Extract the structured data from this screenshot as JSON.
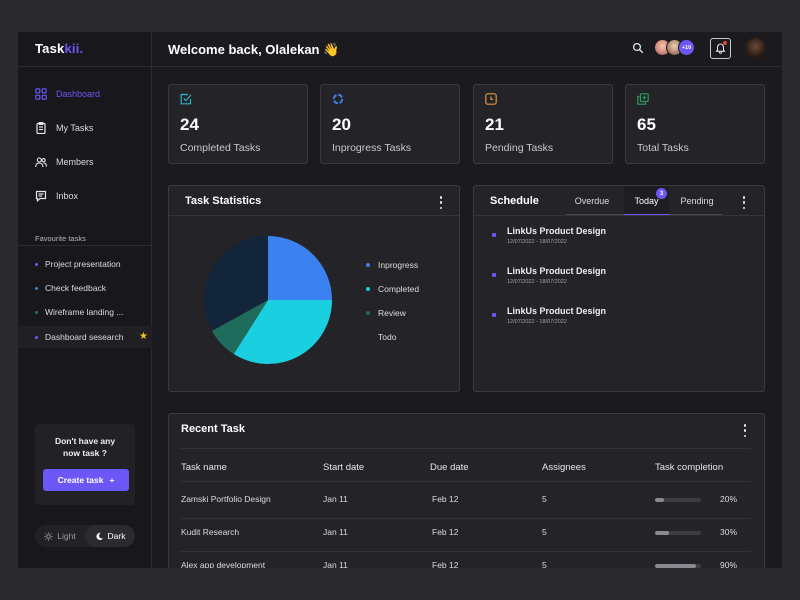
{
  "app": {
    "logo_main": "Task",
    "logo_accent": "kii."
  },
  "sidebar": {
    "nav": [
      {
        "label": "Dashboard",
        "icon": "dashboard-grid-icon",
        "active": true
      },
      {
        "label": "My Tasks",
        "icon": "clipboard-icon",
        "active": false
      },
      {
        "label": "Members",
        "icon": "users-icon",
        "active": false
      },
      {
        "label": "Inbox",
        "icon": "chat-icon",
        "active": false
      }
    ],
    "favourites_title": "Favourite tasks",
    "favourites": [
      {
        "label": "Project presentation",
        "dot_color": "#6b57f5"
      },
      {
        "label": "Check feedback",
        "dot_color": "#2a8bd6"
      },
      {
        "label": "Wireframe landing ...",
        "dot_color": "#1f7a52"
      },
      {
        "label": "Dashboard sesearch",
        "dot_color": "#6b57f5",
        "starred": true
      }
    ],
    "cta": {
      "text_line1": "Don't have any",
      "text_line2": "now task ?",
      "button_label": "Create task",
      "button_icon": "+"
    },
    "theme": {
      "light_label": "Light",
      "dark_label": "Dark",
      "selected": "Dark"
    }
  },
  "header": {
    "welcome": "Welcome back, Olalekan 👋",
    "more_members": "+10",
    "notification_indicator": true
  },
  "stats": [
    {
      "value": "24",
      "label": "Completed Tasks",
      "icon": "check-square-icon",
      "color": "#2ab7c9"
    },
    {
      "value": "20",
      "label": "Inprogress Tasks",
      "icon": "progress-circle-icon",
      "color": "#3f7ee8"
    },
    {
      "value": "21",
      "label": "Pending Tasks",
      "icon": "clock-icon",
      "color": "#e39a3b"
    },
    {
      "value": "65",
      "label": "Total Tasks",
      "icon": "copy-icon",
      "color": "#2f9a5f"
    }
  ],
  "task_statistics": {
    "title": "Task Statistics",
    "chart_data": {
      "type": "pie",
      "slices": [
        {
          "name": "Inprogress",
          "value": 25,
          "color": "#3b82f0"
        },
        {
          "name": "Completed",
          "value": 34,
          "color": "#19cfe0"
        },
        {
          "name": "Review",
          "value": 8,
          "color": "#1f6b5c"
        },
        {
          "name": "Todo",
          "value": 33,
          "color": "#13253b"
        }
      ]
    },
    "legend": [
      {
        "label": "Inprogress",
        "color": "#3b82f0"
      },
      {
        "label": "Completed",
        "color": "#19cfe0"
      },
      {
        "label": "Review",
        "color": "#1f6b5c"
      },
      {
        "label": "Todo",
        "color": "#242428"
      }
    ]
  },
  "schedule": {
    "title": "Schedule",
    "tabs": [
      {
        "label": "Overdue",
        "active": false
      },
      {
        "label": "Today",
        "active": true,
        "badge": "3"
      },
      {
        "label": "Pending",
        "active": false
      }
    ],
    "items": [
      {
        "title": "LinkUs Product Design",
        "dates": "12/07/2022  -  18/07/2022"
      },
      {
        "title": "LinkUs Product Design",
        "dates": "12/07/2022  -  18/07/2022"
      },
      {
        "title": "LinkUs Product Design",
        "dates": "12/07/2022  -  18/07/2022"
      }
    ]
  },
  "recent_tasks": {
    "title": "Recent Task",
    "columns": [
      "Task name",
      "Start date",
      "Due date",
      "Assignees",
      "Task completion"
    ],
    "rows": [
      {
        "name": "Zamski Portfolio Design",
        "start": "Jan 11",
        "due": "Feb 12",
        "assignees": "5",
        "completion": "20%",
        "progress": 0.2
      },
      {
        "name": "Kudit Research",
        "start": "Jan 11",
        "due": "Feb 12",
        "assignees": "5",
        "completion": "30%",
        "progress": 0.3
      },
      {
        "name": "Alex app development",
        "start": "Jan 11",
        "due": "Feb 12",
        "assignees": "5",
        "completion": "90%",
        "progress": 0.9
      }
    ]
  }
}
